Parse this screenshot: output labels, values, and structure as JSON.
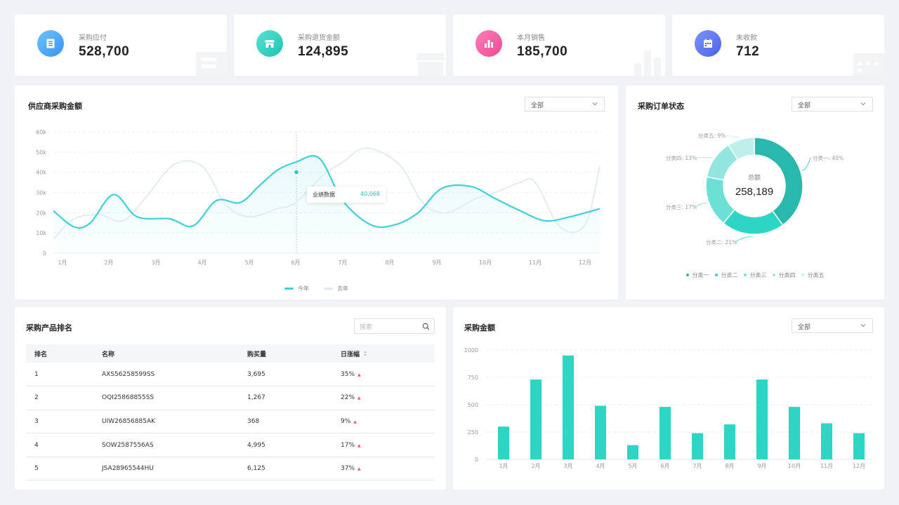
{
  "stats": [
    {
      "label": "采购应付",
      "value": "528,700",
      "icon": "document-list-icon",
      "color": "#4aa8f7"
    },
    {
      "label": "采购退货金额",
      "value": "124,895",
      "icon": "store-icon",
      "color": "#2fd4c2"
    },
    {
      "label": "本月销售",
      "value": "185,700",
      "icon": "bar-chart-icon",
      "color": "#f35ea5"
    },
    {
      "label": "未收款",
      "value": "712",
      "icon": "calendar-icon",
      "color": "#5b74f0"
    }
  ],
  "supplier": {
    "title": "供应商采购金额",
    "filter": "全部",
    "tooltip": {
      "label": "业绩数据",
      "value": "40,068"
    },
    "legend": [
      "今年",
      "去年"
    ]
  },
  "order_status": {
    "title": "采购订单状态",
    "filter": "全部",
    "center_label": "总额",
    "center_value": "258,189",
    "slice_labels": [
      "分类一: 40%",
      "分类二: 21%",
      "分类三: 17%",
      "分类四: 13%",
      "分类五: 9%"
    ],
    "legend": [
      "分类一",
      "分类二",
      "分类三",
      "分类四",
      "分类五"
    ]
  },
  "ranking": {
    "title": "采购产品排名",
    "search_placeholder": "搜索",
    "columns": [
      "排名",
      "名称",
      "购买量",
      "日涨幅"
    ],
    "rows": [
      {
        "rank": "1",
        "name": "AXS56258599SS",
        "qty": "3,695",
        "change": "35%"
      },
      {
        "rank": "2",
        "name": "OQI25868855SS",
        "qty": "1,267",
        "change": "22%"
      },
      {
        "rank": "3",
        "name": "UIW26856885AK",
        "qty": "368",
        "change": "9%"
      },
      {
        "rank": "4",
        "name": "SOW2587556AS",
        "qty": "4,995",
        "change": "17%"
      },
      {
        "rank": "5",
        "name": "JSA28965544HU",
        "qty": "6,125",
        "change": "37%"
      }
    ]
  },
  "amount": {
    "title": "采购金额",
    "filter": "全部"
  },
  "chart_data": [
    {
      "type": "area",
      "title": "供应商采购金额",
      "categories": [
        "1月",
        "2月",
        "3月",
        "4月",
        "5月",
        "6月",
        "7月",
        "8月",
        "9月",
        "10月",
        "11月",
        "12月"
      ],
      "yticks": [
        "0",
        "10k",
        "20k",
        "30k",
        "40k",
        "50k",
        "60k"
      ],
      "ylim": [
        0,
        60000
      ],
      "series": [
        {
          "name": "今年",
          "color": "#3fd0dc",
          "x": [
            0.75,
            1.25,
            1.6,
            2.1,
            2.6,
            3.3,
            3.8,
            4.3,
            4.8,
            5.2,
            5.6,
            6.0,
            6.5,
            7.0,
            7.6,
            8.1,
            8.6,
            9.1,
            9.7,
            10.2,
            10.7,
            11.2,
            11.7,
            12.3
          ],
          "values": [
            21000,
            13000,
            15000,
            29000,
            18000,
            17000,
            13500,
            26000,
            25000,
            33000,
            41000,
            45000,
            47000,
            26000,
            14000,
            14000,
            20000,
            32000,
            33000,
            27000,
            21000,
            16000,
            18000,
            22000
          ]
        },
        {
          "name": "去年",
          "color": "#e2ecf0",
          "x": [
            0.75,
            1.25,
            1.8,
            2.3,
            2.8,
            3.4,
            4.0,
            4.5,
            5.0,
            5.6,
            6.0,
            6.6,
            7.0,
            7.5,
            8.2,
            8.7,
            9.2,
            9.8,
            10.2,
            10.7,
            11.0,
            11.5,
            12.0,
            12.3
          ],
          "values": [
            7000,
            17000,
            19000,
            16000,
            28000,
            44000,
            43000,
            24000,
            18000,
            22000,
            25000,
            39000,
            45000,
            52000,
            44000,
            25000,
            20000,
            27000,
            30000,
            35000,
            35000,
            13000,
            14000,
            43000
          ]
        }
      ]
    },
    {
      "type": "pie",
      "title": "采购订单状态",
      "categories": [
        "分类一",
        "分类二",
        "分类三",
        "分类四",
        "分类五"
      ],
      "values": [
        40,
        21,
        17,
        13,
        9
      ],
      "colors": [
        "#28b8ad",
        "#2dd6c4",
        "#6be1d6",
        "#92e6df",
        "#bfefea"
      ]
    },
    {
      "type": "bar",
      "title": "采购金额",
      "categories": [
        "1月",
        "2月",
        "3月",
        "4月",
        "5月",
        "6月",
        "7月",
        "8月",
        "9月",
        "10月",
        "11月",
        "12月"
      ],
      "values": [
        300,
        730,
        950,
        490,
        130,
        480,
        240,
        320,
        730,
        480,
        330,
        240
      ],
      "yticks": [
        "0",
        "250",
        "500",
        "750",
        "1000"
      ],
      "ylim": [
        0,
        1000
      ],
      "color": "#2dd6c4"
    }
  ]
}
